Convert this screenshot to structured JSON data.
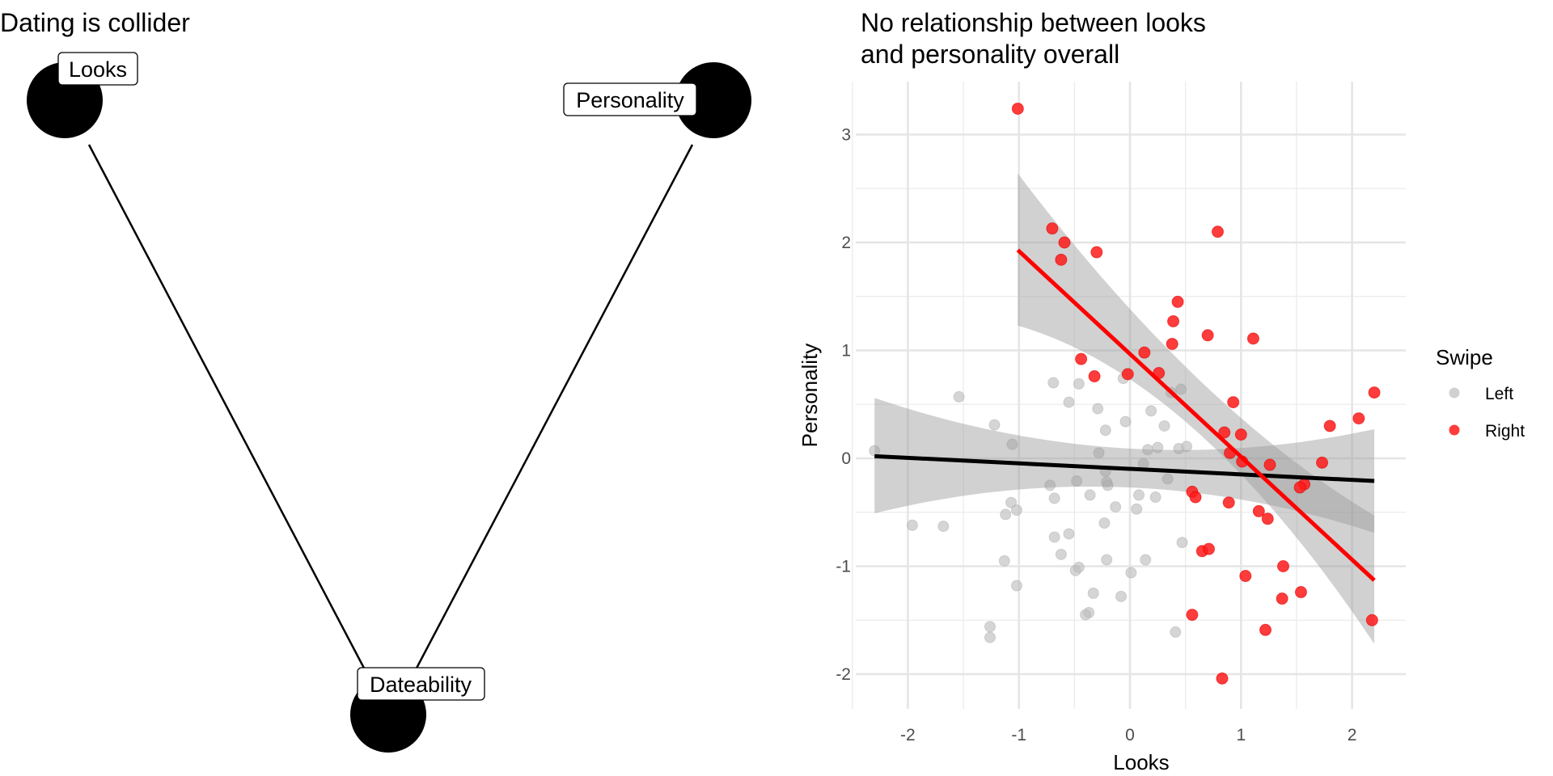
{
  "chart_data": [
    {
      "type": "diagram",
      "title": "Dating is collider",
      "nodes": [
        {
          "id": "looks",
          "label": "Looks"
        },
        {
          "id": "personality",
          "label": "Personality"
        },
        {
          "id": "dateability",
          "label": "Dateability"
        }
      ],
      "edges": [
        {
          "from": "looks",
          "to": "dateability"
        },
        {
          "from": "personality",
          "to": "dateability"
        }
      ]
    },
    {
      "type": "scatter",
      "title_lines": [
        "No relationship between looks",
        "and personality overall"
      ],
      "xlabel": "Looks",
      "ylabel": "Personality",
      "xlim": [
        -2.5,
        2.4
      ],
      "ylim": [
        -2.3,
        3.4
      ],
      "xticks": [
        -2,
        -1,
        0,
        1,
        2
      ],
      "xtick_labels": [
        "-2",
        "-1",
        "0",
        "1",
        "2"
      ],
      "yticks": [
        -2,
        -1,
        0,
        1,
        2,
        3
      ],
      "ytick_labels": [
        "-2",
        "-1",
        "0",
        "1",
        "2",
        "3"
      ],
      "grid": true,
      "legend": {
        "title": "Swipe",
        "position": "right",
        "entries": [
          {
            "label": "Left",
            "color": "#BEBEBE"
          },
          {
            "label": "Right",
            "color": "#FF1A1A"
          }
        ]
      },
      "series": [
        {
          "name": "Left",
          "color": "#BEBEBE",
          "points": [
            [
              -2.3,
              0.07
            ],
            [
              -1.54,
              0.57
            ],
            [
              -1.22,
              0.31
            ],
            [
              -1.06,
              0.13
            ],
            [
              -0.69,
              0.7
            ],
            [
              -0.46,
              0.69
            ],
            [
              -0.55,
              0.52
            ],
            [
              -0.29,
              0.46
            ],
            [
              -0.22,
              0.26
            ],
            [
              -0.04,
              0.34
            ],
            [
              -0.06,
              0.74
            ],
            [
              -0.28,
              0.05
            ],
            [
              -0.22,
              -0.12
            ],
            [
              -0.72,
              -0.25
            ],
            [
              -0.48,
              -0.21
            ],
            [
              -0.21,
              -0.22
            ],
            [
              -0.2,
              -0.25
            ],
            [
              -0.68,
              -0.37
            ],
            [
              -0.36,
              -0.34
            ],
            [
              -1.07,
              -0.41
            ],
            [
              -1.02,
              -0.48
            ],
            [
              -1.12,
              -0.52
            ],
            [
              -0.13,
              -0.45
            ],
            [
              -0.23,
              -0.6
            ],
            [
              -1.96,
              -0.62
            ],
            [
              -1.68,
              -0.63
            ],
            [
              0.37,
              0.61
            ],
            [
              0.46,
              0.64
            ],
            [
              0.19,
              0.44
            ],
            [
              0.31,
              0.3
            ],
            [
              0.16,
              0.08
            ],
            [
              0.25,
              0.1
            ],
            [
              0.44,
              0.09
            ],
            [
              0.51,
              0.11
            ],
            [
              0.12,
              -0.05
            ],
            [
              0.34,
              -0.19
            ],
            [
              0.08,
              -0.34
            ],
            [
              0.23,
              -0.36
            ],
            [
              0.06,
              -0.47
            ],
            [
              -0.68,
              -0.73
            ],
            [
              -0.55,
              -0.7
            ],
            [
              -0.62,
              -0.89
            ],
            [
              -1.13,
              -0.95
            ],
            [
              -0.21,
              -0.94
            ],
            [
              -0.49,
              -1.04
            ],
            [
              -0.46,
              -1.01
            ],
            [
              0.01,
              -1.06
            ],
            [
              -1.02,
              -1.18
            ],
            [
              -0.33,
              -1.25
            ],
            [
              -0.08,
              -1.28
            ],
            [
              -0.37,
              -1.43
            ],
            [
              -0.4,
              -1.45
            ],
            [
              -1.26,
              -1.56
            ],
            [
              -1.26,
              -1.66
            ],
            [
              0.47,
              -0.78
            ],
            [
              0.14,
              -0.94
            ],
            [
              0.41,
              -1.61
            ]
          ],
          "fit": {
            "x": [
              -2.3,
              2.2
            ],
            "y": [
              0.02,
              -0.21
            ],
            "ci_upper": [
              0.56,
              0.09,
              0.27
            ],
            "ci_lower": [
              -0.51,
              -0.27,
              -0.69
            ],
            "ci_x": [
              -2.3,
              0,
              2.2
            ],
            "line_color": "#000000"
          }
        },
        {
          "name": "Right",
          "color": "#FF1A1A",
          "points": [
            [
              -1.01,
              3.24
            ],
            [
              -0.7,
              2.13
            ],
            [
              -0.59,
              2.0
            ],
            [
              -0.62,
              1.84
            ],
            [
              -0.3,
              1.91
            ],
            [
              0.79,
              2.1
            ],
            [
              0.43,
              1.45
            ],
            [
              0.39,
              1.27
            ],
            [
              0.7,
              1.14
            ],
            [
              1.11,
              1.11
            ],
            [
              0.38,
              1.06
            ],
            [
              0.13,
              0.98
            ],
            [
              -0.44,
              0.92
            ],
            [
              -0.32,
              0.76
            ],
            [
              -0.02,
              0.78
            ],
            [
              0.26,
              0.79
            ],
            [
              0.93,
              0.52
            ],
            [
              1.8,
              0.3
            ],
            [
              2.06,
              0.37
            ],
            [
              2.2,
              0.61
            ],
            [
              0.85,
              0.24
            ],
            [
              1.0,
              0.22
            ],
            [
              0.9,
              0.05
            ],
            [
              1.01,
              -0.03
            ],
            [
              1.26,
              -0.06
            ],
            [
              1.73,
              -0.04
            ],
            [
              1.57,
              -0.24
            ],
            [
              1.53,
              -0.27
            ],
            [
              0.56,
              -0.31
            ],
            [
              0.59,
              -0.36
            ],
            [
              0.89,
              -0.41
            ],
            [
              1.16,
              -0.49
            ],
            [
              1.24,
              -0.56
            ],
            [
              0.65,
              -0.86
            ],
            [
              0.71,
              -0.84
            ],
            [
              1.38,
              -1.0
            ],
            [
              1.04,
              -1.09
            ],
            [
              1.54,
              -1.24
            ],
            [
              1.37,
              -1.3
            ],
            [
              0.56,
              -1.45
            ],
            [
              1.22,
              -1.59
            ],
            [
              2.18,
              -1.5
            ],
            [
              0.83,
              -2.04
            ]
          ],
          "fit": {
            "x": [
              -1.01,
              2.2
            ],
            "y": [
              1.93,
              -1.13
            ],
            "ci_upper": [
              2.64,
              0.75,
              -0.53
            ],
            "ci_lower": [
              1.23,
              0.25,
              -1.72
            ],
            "ci_x": [
              -1.01,
              0.6,
              2.2
            ],
            "line_color": "#FF0000"
          }
        }
      ]
    }
  ]
}
